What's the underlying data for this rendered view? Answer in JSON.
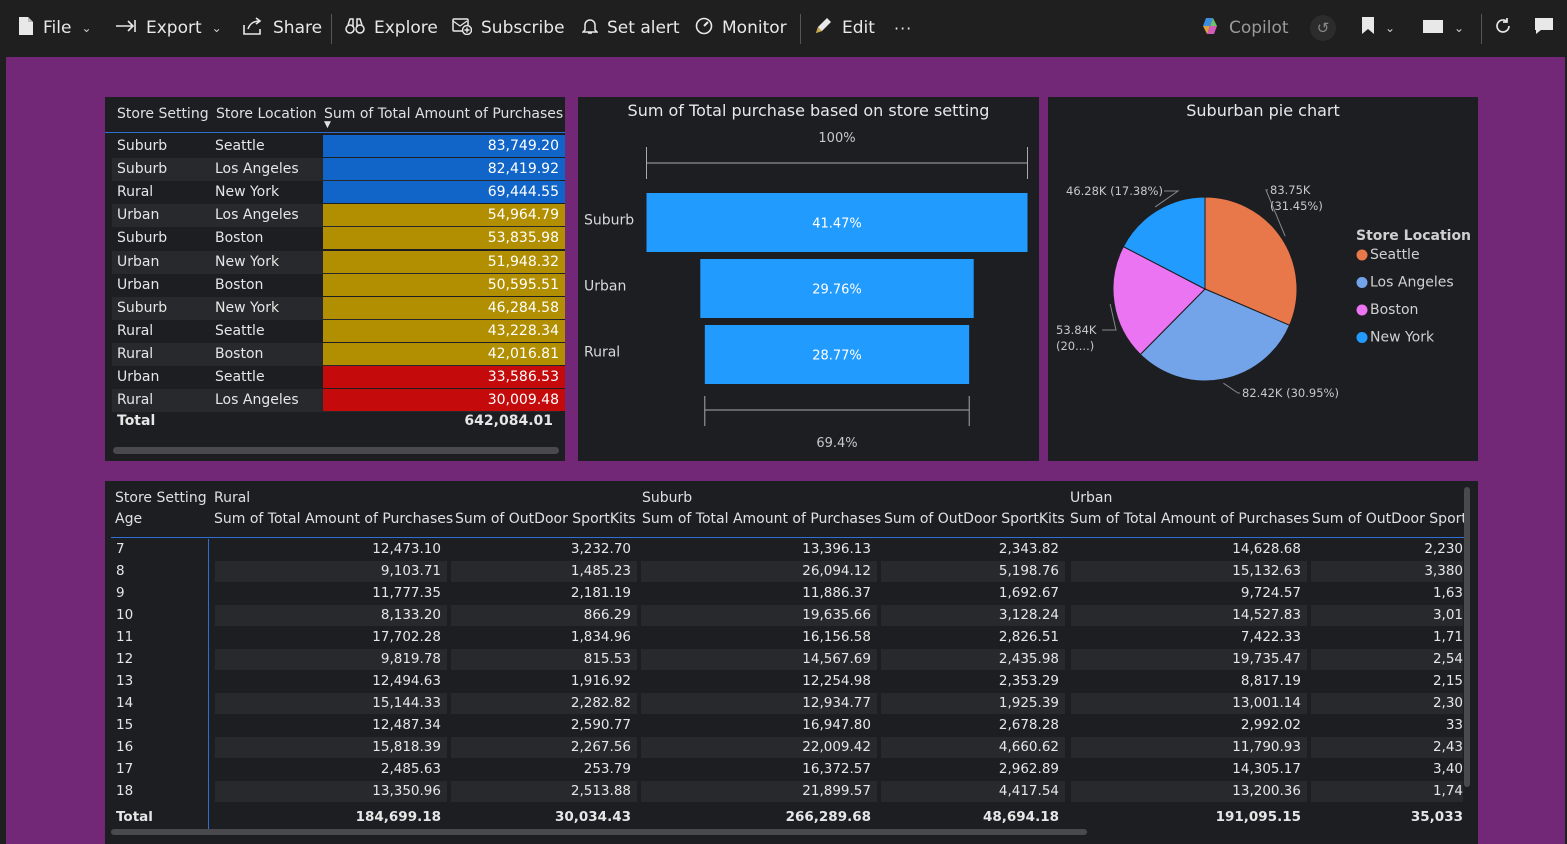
{
  "toolbar": {
    "file": "File",
    "export": "Export",
    "share": "Share",
    "explore": "Explore",
    "subscribe": "Subscribe",
    "set_alert": "Set alert",
    "monitor": "Monitor",
    "edit": "Edit",
    "more": "···",
    "copilot": "Copilot"
  },
  "colors": {
    "canvas": "#722877",
    "panel": "#1d1e22",
    "high": "#1165c8",
    "mid": "#b28f00",
    "low": "#c40a0a",
    "funnel": "#229bff",
    "seattle": "#e8774a",
    "los_angeles": "#73a4ea",
    "boston": "#ea74f2",
    "new_york": "#229bff"
  },
  "table1": {
    "headers": [
      "Store Setting",
      "Store Location",
      "Sum of Total Amount of Purchases"
    ],
    "rows": [
      {
        "setting": "Suburb",
        "location": "Seattle",
        "amount": "83,749.20",
        "band": "high"
      },
      {
        "setting": "Suburb",
        "location": "Los Angeles",
        "amount": "82,419.92",
        "band": "high"
      },
      {
        "setting": "Rural",
        "location": "New York",
        "amount": "69,444.55",
        "band": "high"
      },
      {
        "setting": "Urban",
        "location": "Los Angeles",
        "amount": "54,964.79",
        "band": "mid"
      },
      {
        "setting": "Suburb",
        "location": "Boston",
        "amount": "53,835.98",
        "band": "mid"
      },
      {
        "setting": "Urban",
        "location": "New York",
        "amount": "51,948.32",
        "band": "mid"
      },
      {
        "setting": "Urban",
        "location": "Boston",
        "amount": "50,595.51",
        "band": "mid"
      },
      {
        "setting": "Suburb",
        "location": "New York",
        "amount": "46,284.58",
        "band": "mid"
      },
      {
        "setting": "Rural",
        "location": "Seattle",
        "amount": "43,228.34",
        "band": "mid"
      },
      {
        "setting": "Rural",
        "location": "Boston",
        "amount": "42,016.81",
        "band": "mid"
      },
      {
        "setting": "Urban",
        "location": "Seattle",
        "amount": "33,586.53",
        "band": "low"
      },
      {
        "setting": "Rural",
        "location": "Los Angeles",
        "amount": "30,009.48",
        "band": "low"
      }
    ],
    "total_label": "Total",
    "total_value": "642,084.01"
  },
  "chart_data": [
    {
      "type": "bar",
      "subtype": "funnel",
      "title": "Sum of Total purchase based on store setting",
      "categories": [
        "Suburb",
        "Urban",
        "Rural"
      ],
      "values": [
        41.47,
        29.76,
        28.77
      ],
      "value_labels": [
        "41.47%",
        "29.76%",
        "28.77%"
      ],
      "top_label": "100%",
      "bottom_label": "69.4%",
      "top_ratio": 1.0,
      "bottom_ratio": 0.694
    },
    {
      "type": "pie",
      "title": "Suburban pie chart",
      "legend_title": "Store Location",
      "legend_placement": "right",
      "categories": [
        "Seattle",
        "Los Angeles",
        "Boston",
        "New York"
      ],
      "values": [
        83.75,
        82.42,
        53.84,
        46.28
      ],
      "data_labels": [
        "83.75K (31.45%)",
        "82.42K (30.95%)",
        "53.84K (20....)",
        "46.28K (17.38%)"
      ],
      "colors": [
        "#e8774a",
        "#73a4ea",
        "#ea74f2",
        "#229bff"
      ]
    }
  ],
  "matrix": {
    "row_header_1": "Store Setting",
    "row_header_2": "Age",
    "groups": [
      "Rural",
      "Suburb",
      "Urban"
    ],
    "col_purch": "Sum of Total Amount of Purchases",
    "col_sport": "Sum of OutDoor SportKits",
    "col_sport_cut": "Sum of OutDoor Sport",
    "rows": [
      {
        "age": "7",
        "r_p": "12,473.10",
        "r_s": "3,232.70",
        "s_p": "13,396.13",
        "s_s": "2,343.82",
        "u_p": "14,628.68",
        "u_s": "2,230"
      },
      {
        "age": "8",
        "r_p": "9,103.71",
        "r_s": "1,485.23",
        "s_p": "26,094.12",
        "s_s": "5,198.76",
        "u_p": "15,132.63",
        "u_s": "3,380"
      },
      {
        "age": "9",
        "r_p": "11,777.35",
        "r_s": "2,181.19",
        "s_p": "11,886.37",
        "s_s": "1,692.67",
        "u_p": "9,724.57",
        "u_s": "1,63"
      },
      {
        "age": "10",
        "r_p": "8,133.20",
        "r_s": "866.29",
        "s_p": "19,635.66",
        "s_s": "3,128.24",
        "u_p": "14,527.83",
        "u_s": "3,01"
      },
      {
        "age": "11",
        "r_p": "17,702.28",
        "r_s": "1,834.96",
        "s_p": "16,156.58",
        "s_s": "2,826.51",
        "u_p": "7,422.33",
        "u_s": "1,71"
      },
      {
        "age": "12",
        "r_p": "9,819.78",
        "r_s": "815.53",
        "s_p": "14,567.69",
        "s_s": "2,435.98",
        "u_p": "19,735.47",
        "u_s": "2,54"
      },
      {
        "age": "13",
        "r_p": "12,494.63",
        "r_s": "1,916.92",
        "s_p": "12,254.98",
        "s_s": "2,353.29",
        "u_p": "8,817.19",
        "u_s": "2,15"
      },
      {
        "age": "14",
        "r_p": "15,144.33",
        "r_s": "2,282.82",
        "s_p": "12,934.77",
        "s_s": "1,925.39",
        "u_p": "13,001.14",
        "u_s": "2,30"
      },
      {
        "age": "15",
        "r_p": "12,487.34",
        "r_s": "2,590.77",
        "s_p": "16,947.80",
        "s_s": "2,678.28",
        "u_p": "2,992.02",
        "u_s": "33"
      },
      {
        "age": "16",
        "r_p": "15,818.39",
        "r_s": "2,267.56",
        "s_p": "22,009.42",
        "s_s": "4,660.62",
        "u_p": "11,790.93",
        "u_s": "2,43"
      },
      {
        "age": "17",
        "r_p": "2,485.63",
        "r_s": "253.79",
        "s_p": "16,372.57",
        "s_s": "2,962.89",
        "u_p": "14,305.17",
        "u_s": "3,40"
      },
      {
        "age": "18",
        "r_p": "13,350.96",
        "r_s": "2,513.88",
        "s_p": "21,899.57",
        "s_s": "4,417.54",
        "u_p": "13,200.36",
        "u_s": "1,74"
      }
    ],
    "total": {
      "age": "Total",
      "r_p": "184,699.18",
      "r_s": "30,034.43",
      "s_p": "266,289.68",
      "s_s": "48,694.18",
      "u_p": "191,095.15",
      "u_s": "35,033"
    }
  }
}
